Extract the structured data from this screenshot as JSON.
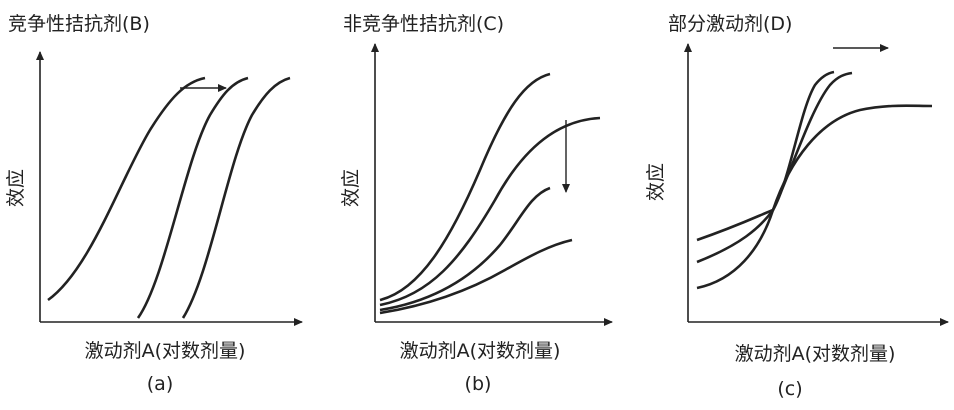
{
  "panels": [
    {
      "title": "竞争性拮抗剂(B)",
      "y_label": "效应",
      "x_label": "激动剂A(对数剂量)",
      "caption": "(a)"
    },
    {
      "title": "非竞争性拮抗剂(C)",
      "y_label": "效应",
      "x_label": "激动剂A(对数剂量)",
      "caption": "(b)"
    },
    {
      "title": "部分激动剂(D)",
      "y_label": "效应",
      "x_label": "激动剂A(对数剂量)",
      "caption": "(c)"
    }
  ]
}
